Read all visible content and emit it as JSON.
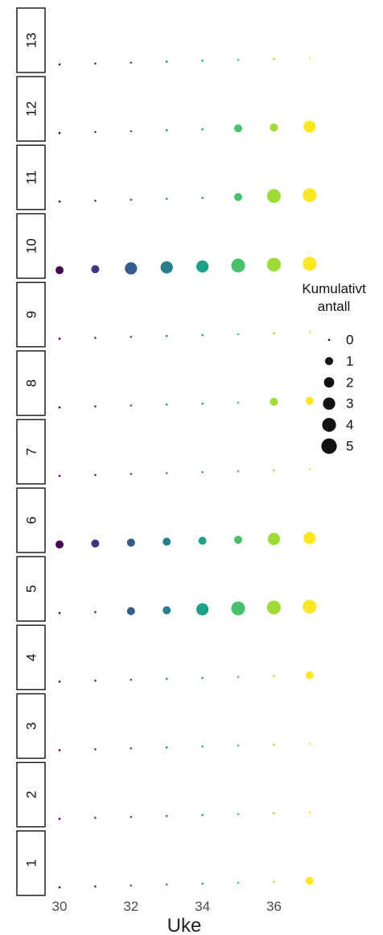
{
  "chart_data": {
    "type": "scatter",
    "xlabel": "Uke",
    "ylabel": "",
    "title": "",
    "xlim": [
      30,
      37
    ],
    "x_ticks": [
      30,
      32,
      34,
      36
    ],
    "x_values": [
      30,
      31,
      32,
      33,
      34,
      35,
      36,
      37
    ],
    "facet_axis_labels": [
      "13",
      "12",
      "11",
      "10",
      "9",
      "8",
      "7",
      "6",
      "5",
      "4",
      "3",
      "2",
      "1"
    ],
    "legend": {
      "title_line1": "Kumulativt",
      "title_line2": "antall",
      "sizes": [
        0,
        1,
        2,
        3,
        4,
        5
      ],
      "labels": [
        "0",
        "1",
        "2",
        "3",
        "4",
        "5"
      ],
      "position": "right"
    },
    "colors": {
      "30": "#440154",
      "31": "#46327e",
      "32": "#365c8d",
      "33": "#277f8e",
      "34": "#1fa187",
      "35": "#4ac16d",
      "36": "#a0da39",
      "37": "#fde725"
    },
    "panels": [
      {
        "label": "13",
        "points": [
          [
            30,
            0
          ],
          [
            31,
            0
          ],
          [
            32,
            0
          ],
          [
            33,
            0
          ],
          [
            34,
            0
          ],
          [
            35,
            0
          ],
          [
            36,
            0
          ],
          [
            37,
            0
          ]
        ]
      },
      {
        "label": "12",
        "points": [
          [
            30,
            0
          ],
          [
            31,
            0
          ],
          [
            32,
            0
          ],
          [
            33,
            0
          ],
          [
            34,
            0
          ],
          [
            35,
            1
          ],
          [
            36,
            1
          ],
          [
            37,
            3
          ]
        ]
      },
      {
        "label": "11",
        "points": [
          [
            30,
            0
          ],
          [
            31,
            0
          ],
          [
            32,
            0
          ],
          [
            33,
            0
          ],
          [
            34,
            0
          ],
          [
            35,
            1
          ],
          [
            36,
            4
          ],
          [
            37,
            4
          ]
        ]
      },
      {
        "label": "10",
        "points": [
          [
            30,
            1
          ],
          [
            31,
            1
          ],
          [
            32,
            3
          ],
          [
            33,
            3
          ],
          [
            34,
            3
          ],
          [
            35,
            4
          ],
          [
            36,
            4
          ],
          [
            37,
            4
          ]
        ]
      },
      {
        "label": "9",
        "points": [
          [
            30,
            0
          ],
          [
            31,
            0
          ],
          [
            32,
            0
          ],
          [
            33,
            0
          ],
          [
            34,
            0
          ],
          [
            35,
            0
          ],
          [
            36,
            0
          ],
          [
            37,
            0
          ]
        ]
      },
      {
        "label": "8",
        "points": [
          [
            30,
            0
          ],
          [
            31,
            0
          ],
          [
            32,
            0
          ],
          [
            33,
            0
          ],
          [
            34,
            0
          ],
          [
            35,
            0
          ],
          [
            36,
            1
          ],
          [
            37,
            1
          ]
        ]
      },
      {
        "label": "7",
        "points": [
          [
            30,
            0
          ],
          [
            31,
            0
          ],
          [
            32,
            0
          ],
          [
            33,
            0
          ],
          [
            34,
            0
          ],
          [
            35,
            0
          ],
          [
            36,
            0
          ],
          [
            37,
            0
          ]
        ]
      },
      {
        "label": "6",
        "points": [
          [
            30,
            1
          ],
          [
            31,
            1
          ],
          [
            32,
            1
          ],
          [
            33,
            1
          ],
          [
            34,
            1
          ],
          [
            35,
            1
          ],
          [
            36,
            3
          ],
          [
            37,
            3
          ]
        ]
      },
      {
        "label": "5",
        "points": [
          [
            30,
            0
          ],
          [
            31,
            0
          ],
          [
            32,
            1
          ],
          [
            33,
            1
          ],
          [
            34,
            3
          ],
          [
            35,
            4
          ],
          [
            36,
            4
          ],
          [
            37,
            4
          ]
        ]
      },
      {
        "label": "4",
        "points": [
          [
            30,
            0
          ],
          [
            31,
            0
          ],
          [
            32,
            0
          ],
          [
            33,
            0
          ],
          [
            34,
            0
          ],
          [
            35,
            0
          ],
          [
            36,
            0
          ],
          [
            37,
            1
          ]
        ]
      },
      {
        "label": "3",
        "points": [
          [
            30,
            0
          ],
          [
            31,
            0
          ],
          [
            32,
            0
          ],
          [
            33,
            0
          ],
          [
            34,
            0
          ],
          [
            35,
            0
          ],
          [
            36,
            0
          ],
          [
            37,
            0
          ]
        ]
      },
      {
        "label": "2",
        "points": [
          [
            30,
            0
          ],
          [
            31,
            0
          ],
          [
            32,
            0
          ],
          [
            33,
            0
          ],
          [
            34,
            0
          ],
          [
            35,
            0
          ],
          [
            36,
            0
          ],
          [
            37,
            0
          ]
        ]
      },
      {
        "label": "1",
        "points": [
          [
            30,
            0
          ],
          [
            31,
            0
          ],
          [
            32,
            0
          ],
          [
            33,
            0
          ],
          [
            34,
            0
          ],
          [
            35,
            0
          ],
          [
            36,
            0
          ],
          [
            37,
            1
          ]
        ]
      }
    ]
  }
}
